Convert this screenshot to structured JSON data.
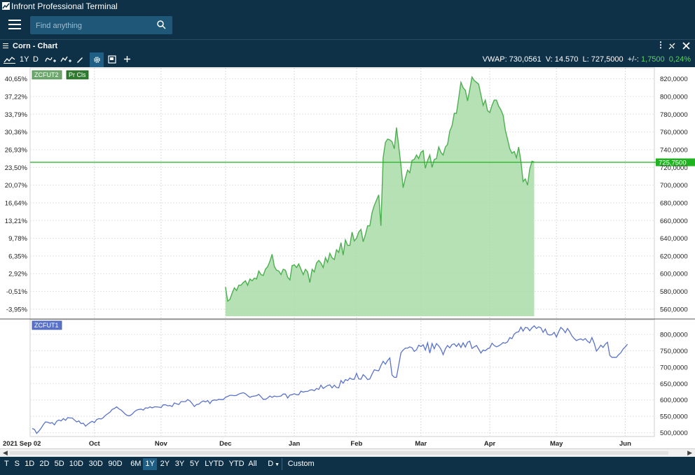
{
  "app": {
    "title": "Infront Professional Terminal"
  },
  "search": {
    "placeholder": "Find anything"
  },
  "panel": {
    "title": "Corn - Chart"
  },
  "toolbar": {
    "period_1y": "1Y",
    "interval_d": "D"
  },
  "stats": {
    "vwap": "VWAP: 730,0561",
    "volume": "V: 14.570",
    "last": "L: 727,5000",
    "change_label": "+/-:",
    "change_abs": "1,7500",
    "change_pct": "0,24%"
  },
  "colors": {
    "background": "#0e3148",
    "toolbar_active": "#1f5f85",
    "price_line": "#4caf50",
    "price_fill": "#a8dca8",
    "last_line": "#1fb31f",
    "lower_line": "#5a73c9",
    "positive": "#5ad45a"
  },
  "chart_data": [
    {
      "type": "area",
      "legend": [
        "ZCFUT2",
        "Pr Cls"
      ],
      "y_right_ticks": [
        "820,0000",
        "800,0000",
        "780,0000",
        "760,0000",
        "740,0000",
        "720,0000",
        "700,0000",
        "680,0000",
        "660,0000",
        "640,0000",
        "620,0000",
        "600,0000",
        "580,0000",
        "560,0000"
      ],
      "y_left_ticks": [
        "40,65%",
        "37,22%",
        "33,79%",
        "30,36%",
        "26,93%",
        "23,50%",
        "20,07%",
        "16,64%",
        "13,21%",
        "9,78%",
        "6,35%",
        "2,92%",
        "-0,51%",
        "-3,95%"
      ],
      "ylim": [
        552,
        830
      ],
      "last_price": 725.75,
      "last_price_label": "725,7500",
      "x_start_day": 87,
      "values": [
        585,
        569,
        571,
        578,
        584,
        581,
        587,
        587,
        590,
        592,
        587,
        594,
        592,
        595,
        594,
        603,
        599,
        598,
        605,
        608,
        614,
        622,
        608,
        604,
        603,
        599,
        605,
        604,
        596,
        593,
        609,
        610,
        607,
        611,
        605,
        599,
        605,
        602,
        590,
        605,
        602,
        612,
        615,
        612,
        607,
        618,
        613,
        623,
        618,
        616,
        627,
        624,
        635,
        621,
        638,
        632,
        632,
        647,
        637,
        640,
        647,
        650,
        636,
        644,
        654,
        654,
        669,
        677,
        683,
        689,
        654,
        731,
        748,
        752,
        751,
        749,
        741,
        765,
        744,
        722,
        697,
        708,
        717,
        714,
        728,
        729,
        734,
        730,
        737,
        739,
        719,
        728,
        734,
        720,
        729,
        730,
        743,
        737,
        734,
        743,
        746,
        761,
        767,
        781,
        781,
        798,
        816,
        810,
        807,
        795,
        808,
        822,
        818,
        816,
        814,
        802,
        790,
        796,
        784,
        782,
        790,
        796,
        796,
        789,
        785,
        779,
        762,
        752,
        741,
        736,
        738,
        731,
        743,
        727,
        704,
        707,
        700,
        718,
        727,
        726
      ]
    },
    {
      "type": "line",
      "legend": [
        "ZCFUT1"
      ],
      "y_right_ticks": [
        "800,0000",
        "750,0000",
        "700,0000",
        "650,0000",
        "600,0000",
        "550,0000",
        "500,0000"
      ],
      "ylim": [
        497,
        834
      ],
      "x_start_day": 0,
      "values": [
        513,
        510,
        498,
        505,
        514,
        525,
        533,
        532,
        529,
        531,
        524,
        535,
        539,
        536,
        543,
        538,
        546,
        545,
        545,
        539,
        533,
        536,
        528,
        529,
        520,
        526,
        531,
        535,
        531,
        540,
        543,
        542,
        546,
        553,
        558,
        563,
        571,
        574,
        579,
        573,
        569,
        563,
        556,
        552,
        552,
        557,
        564,
        569,
        571,
        572,
        569,
        576,
        575,
        579,
        576,
        579,
        579,
        578,
        577,
        585,
        585,
        582,
        583,
        580,
        591,
        588,
        586,
        595,
        595,
        595,
        601,
        597,
        589,
        580,
        586,
        587,
        593,
        597,
        594,
        598,
        589,
        598,
        600,
        599,
        602,
        601,
        601,
        608,
        611,
        614,
        614,
        613,
        614,
        618,
        620,
        622,
        619,
        613,
        608,
        611,
        612,
        613,
        617,
        610,
        602,
        602,
        606,
        612,
        608,
        612,
        610,
        611,
        612,
        618,
        618,
        606,
        615,
        616,
        619,
        616,
        616,
        627,
        624,
        626,
        626,
        630,
        631,
        628,
        635,
        632,
        645,
        635,
        640,
        644,
        646,
        637,
        645,
        638,
        637,
        659,
        651,
        662,
        659,
        667,
        663,
        663,
        681,
        664,
        663,
        677,
        671,
        662,
        664,
        679,
        692,
        690,
        689,
        705,
        718,
        709,
        720,
        728,
        676,
        669,
        669,
        706,
        744,
        752,
        758,
        758,
        762,
        759,
        748,
        753,
        767,
        763,
        768,
        752,
        774,
        743,
        772,
        756,
        772,
        765,
        755,
        738,
        756,
        766,
        759,
        769,
        771,
        763,
        772,
        760,
        774,
        761,
        776,
        779,
        757,
        762,
        766,
        755,
        743,
        752,
        750,
        756,
        759,
        773,
        766,
        762,
        765,
        769,
        775,
        773,
        777,
        790,
        787,
        801,
        806,
        808,
        822,
        810,
        821,
        820,
        811,
        820,
        826,
        818,
        823,
        820,
        806,
        816,
        800,
        798,
        799,
        806,
        792,
        808,
        821,
        815,
        805,
        818,
        808,
        795,
        787,
        781,
        784,
        786,
        782,
        787,
        779,
        774,
        790,
        773,
        749,
        757,
        767,
        760,
        770,
        776,
        736,
        730,
        730,
        730,
        738,
        744,
        755,
        762,
        770
      ]
    }
  ],
  "x_axis": {
    "total_days": 276,
    "labels": [
      {
        "text": "2021 Sep 02",
        "day": 0,
        "bold": true
      },
      {
        "text": "Oct",
        "day": 28
      },
      {
        "text": "Nov",
        "day": 58
      },
      {
        "text": "Dec",
        "day": 87
      },
      {
        "text": "Jan",
        "day": 118
      },
      {
        "text": "Feb",
        "day": 146
      },
      {
        "text": "Mar",
        "day": 175
      },
      {
        "text": "Apr",
        "day": 206
      },
      {
        "text": "May",
        "day": 236
      },
      {
        "text": "Jun",
        "day": 267
      }
    ]
  },
  "periods": [
    {
      "label": "T"
    },
    {
      "label": "S"
    },
    {
      "label": "1D"
    },
    {
      "label": "2D"
    },
    {
      "label": "5D"
    },
    {
      "label": "10D"
    },
    {
      "label": "30D"
    },
    {
      "label": "90D"
    },
    {
      "label": "6M"
    },
    {
      "label": "1Y",
      "active": true
    },
    {
      "label": "2Y"
    },
    {
      "label": "3Y"
    },
    {
      "label": "5Y"
    },
    {
      "label": "LYTD"
    },
    {
      "label": "YTD"
    },
    {
      "label": "All"
    },
    {
      "label": "D"
    },
    {
      "label": "Custom"
    }
  ]
}
